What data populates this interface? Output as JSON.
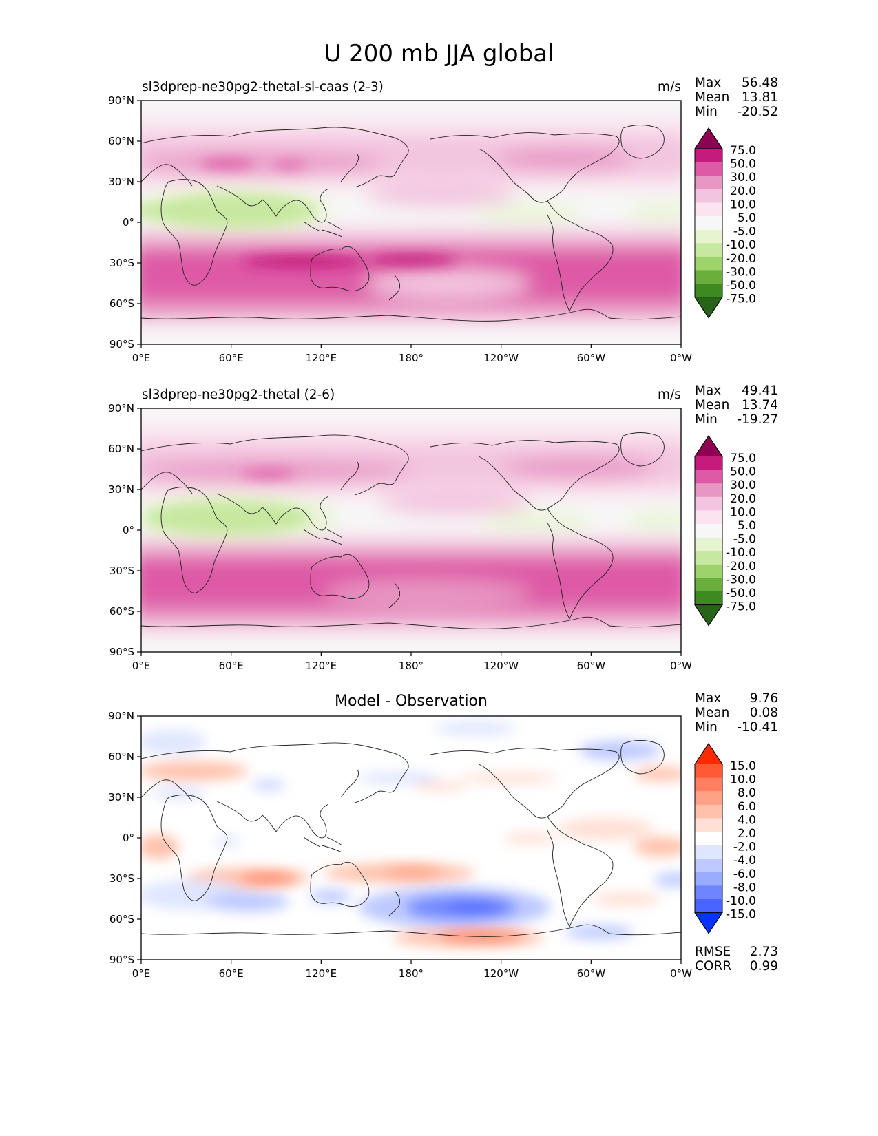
{
  "title": "U 200 mb JJA global",
  "panels": [
    {
      "id": "test",
      "title": "sl3dprep-ne30pg2-thetal-sl-caas (2-3)",
      "units": "m/s",
      "stats": {
        "max_label": "Max",
        "max": "56.48",
        "mean_label": "Mean",
        "mean": "13.81",
        "min_label": "Min",
        "min": "-20.52"
      },
      "colorbar": {
        "levels": [
          "75.0",
          "50.0",
          "30.0",
          "20.0",
          "10.0",
          "5.0",
          "-5.0",
          "-10.0",
          "-20.0",
          "-30.0",
          "-50.0",
          "-75.0"
        ],
        "colors": [
          "#8e0152",
          "#c51b7d",
          "#de5aa6",
          "#e897c4",
          "#f3c4df",
          "#fbe3ef",
          "#f7f7f7",
          "#e6f5d0",
          "#c7e8a0",
          "#9ed26a",
          "#6aae3b",
          "#3c8a20",
          "#276419"
        ]
      }
    },
    {
      "id": "ref",
      "title": "sl3dprep-ne30pg2-thetal (2-6)",
      "units": "m/s",
      "stats": {
        "max_label": "Max",
        "max": "49.41",
        "mean_label": "Mean",
        "mean": "13.74",
        "min_label": "Min",
        "min": "-19.27"
      },
      "colorbar": {
        "levels": [
          "75.0",
          "50.0",
          "30.0",
          "20.0",
          "10.0",
          "5.0",
          "-5.0",
          "-10.0",
          "-20.0",
          "-30.0",
          "-50.0",
          "-75.0"
        ],
        "colors": [
          "#8e0152",
          "#c51b7d",
          "#de5aa6",
          "#e897c4",
          "#f3c4df",
          "#fbe3ef",
          "#f7f7f7",
          "#e6f5d0",
          "#c7e8a0",
          "#9ed26a",
          "#6aae3b",
          "#3c8a20",
          "#276419"
        ]
      }
    },
    {
      "id": "diff",
      "title": "Model - Observation",
      "stats": {
        "max_label": "Max",
        "max": "9.76",
        "mean_label": "Mean",
        "mean": "0.08",
        "min_label": "Min",
        "min": "-10.41"
      },
      "extra": {
        "rmse_label": "RMSE",
        "rmse": "2.73",
        "corr_label": "CORR",
        "corr": "0.99"
      },
      "colorbar": {
        "levels": [
          "15.0",
          "10.0",
          "8.0",
          "6.0",
          "4.0",
          "2.0",
          "-2.0",
          "-4.0",
          "-6.0",
          "-8.0",
          "-10.0",
          "-15.0"
        ],
        "colors": [
          "#ff2a00",
          "#ff5a36",
          "#ff7f60",
          "#ffa185",
          "#ffc1ab",
          "#ffe0d5",
          "#ffffff",
          "#dfe6ff",
          "#bdc9ff",
          "#9aacff",
          "#6f85ff",
          "#4a64ff",
          "#0a32ff"
        ]
      }
    }
  ],
  "axes": {
    "lat_ticks": [
      "90°N",
      "60°N",
      "30°N",
      "0°",
      "30°S",
      "60°S",
      "90°S"
    ],
    "lon_ticks": [
      "0°E",
      "60°E",
      "120°E",
      "180°",
      "120°W",
      "60°W",
      "0°W"
    ]
  }
}
